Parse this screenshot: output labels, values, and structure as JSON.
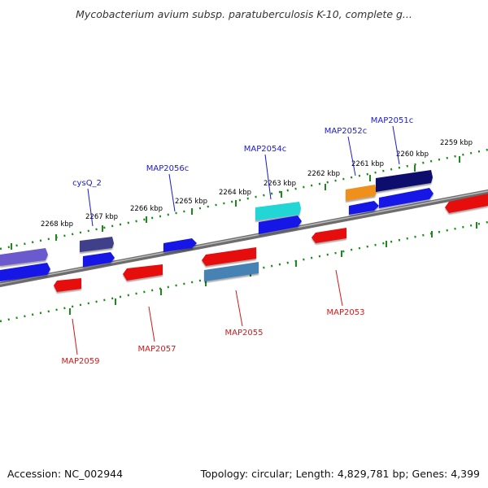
{
  "title": "Mycobacterium avium subsp. paratuberculosis K-10, complete g...",
  "footer": {
    "accession": "Accession: NC_002944",
    "summary": "Topology: circular; Length: 4,829,781 bp; Genes: 4,399"
  },
  "colors": {
    "background": "#ffffff",
    "backbone": "#7a7a7a",
    "tick": "#1a8a1a",
    "label_top": "#1a1ad0",
    "label_bottom": "#d01a1a",
    "tick_label": "#000000"
  },
  "scale": {
    "unit": "kbp",
    "ticks": [
      {
        "value": 2268,
        "label": "2268 kbp"
      },
      {
        "value": 2267,
        "label": "2267 kbp"
      },
      {
        "value": 2266,
        "label": "2266 kbp"
      },
      {
        "value": 2265,
        "label": "2265 kbp"
      },
      {
        "value": 2264,
        "label": "2264 kbp"
      },
      {
        "value": 2263,
        "label": "2263 kbp"
      },
      {
        "value": 2262,
        "label": "2262 kbp"
      },
      {
        "value": 2261,
        "label": "2261 kbp"
      },
      {
        "value": 2260,
        "label": "2260 kbp"
      },
      {
        "value": 2259,
        "label": "2259 kbp"
      }
    ]
  },
  "gene_labels_top": [
    "cysQ_2",
    "MAP2056c",
    "MAP2054c",
    "MAP2052c",
    "MAP2051c"
  ],
  "gene_labels_bottom": [
    "MAP2059",
    "MAP2057",
    "MAP2055",
    "MAP2053"
  ]
}
